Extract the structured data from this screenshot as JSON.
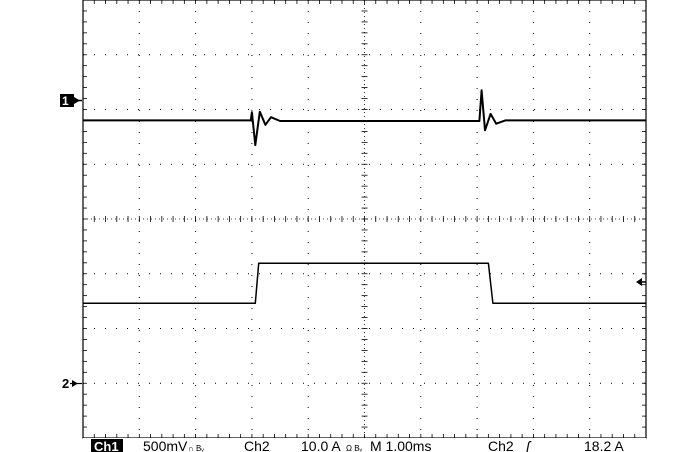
{
  "chart_data": {
    "type": "line",
    "title": "",
    "grid": true,
    "divisions": {
      "x": 10,
      "y": 8
    },
    "x": {
      "unit": "ms",
      "per_div": 1.0,
      "range": [
        0,
        10
      ]
    },
    "markers": {
      "ch1_ground": "1",
      "ch2_ground": "2",
      "trigger_level": "trigger-level-arrow"
    },
    "series": [
      {
        "channel": "Ch1",
        "color": "#000000",
        "ground_div": 5.8,
        "points": [
          [
            0,
            5.8
          ],
          [
            2.98,
            5.8
          ],
          [
            3.0,
            5.95
          ],
          [
            3.06,
            5.35
          ],
          [
            3.14,
            5.96
          ],
          [
            3.24,
            5.72
          ],
          [
            3.34,
            5.86
          ],
          [
            3.5,
            5.79
          ],
          [
            7.04,
            5.79
          ],
          [
            7.08,
            6.35
          ],
          [
            7.14,
            5.62
          ],
          [
            7.24,
            5.92
          ],
          [
            7.34,
            5.74
          ],
          [
            7.5,
            5.8
          ],
          [
            10,
            5.8
          ]
        ]
      },
      {
        "channel": "Ch2",
        "color": "#000000",
        "ground_div": 0.95,
        "points": [
          [
            0,
            2.46
          ],
          [
            3.06,
            2.46
          ],
          [
            3.12,
            3.19
          ],
          [
            7.2,
            3.19
          ],
          [
            7.28,
            2.46
          ],
          [
            10,
            2.46
          ]
        ]
      }
    ],
    "readout": {
      "ch1_label": "Ch1",
      "ch1_scale": "500mV",
      "ch1_bw_symbol": "∩ Bᵥ",
      "ch2_label": "Ch2",
      "ch2_scale": "10.0 A",
      "ch2_coupling_symbol": "Ω Bᵥ",
      "timebase": "M 1.00ms",
      "trigger_source": "Ch2",
      "trigger_slope_symbol": "ʃ",
      "trigger_level": "18.2 A"
    }
  }
}
